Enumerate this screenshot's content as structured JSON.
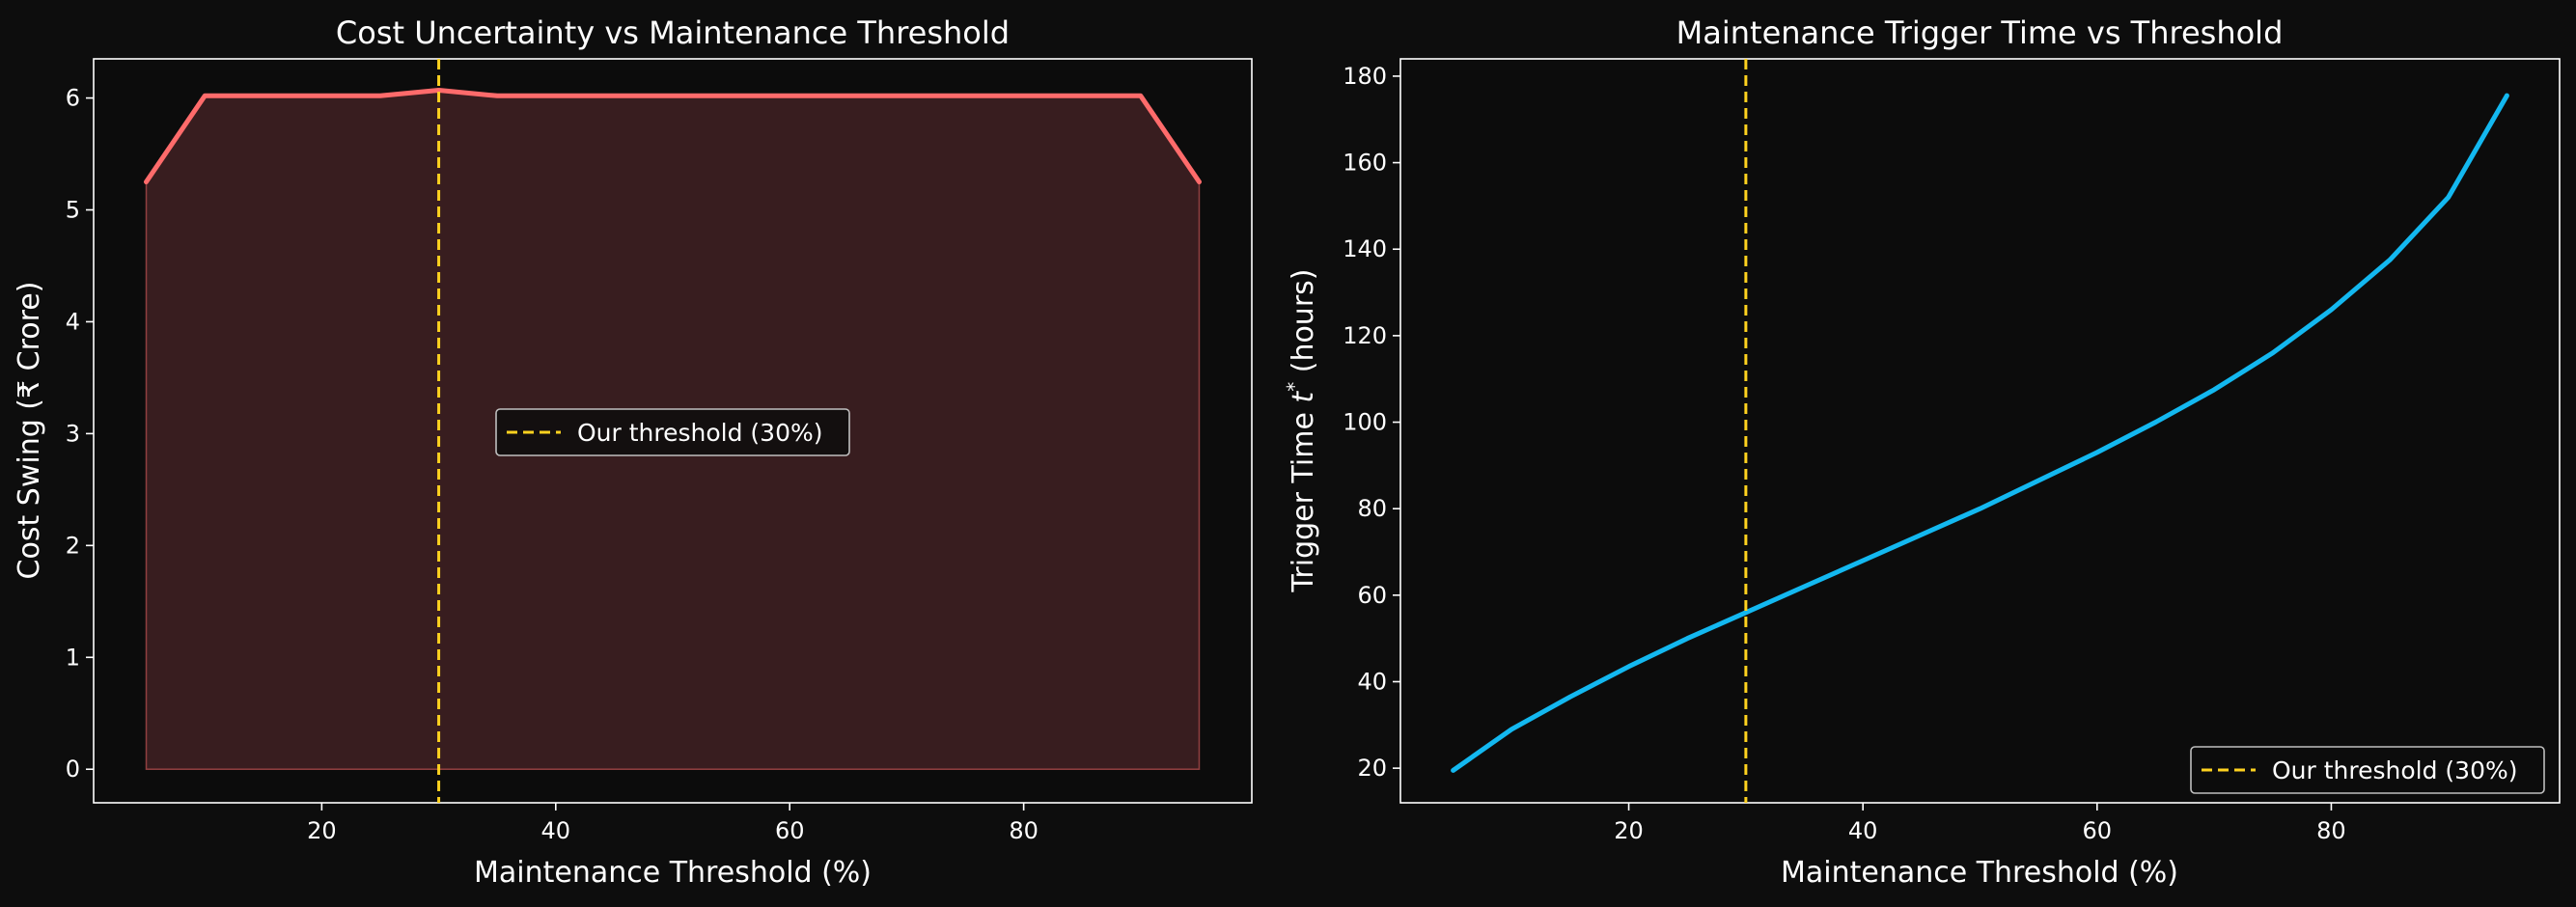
{
  "chart_data": [
    {
      "type": "area",
      "title": "Cost Uncertainty vs Maintenance Threshold",
      "xlabel": "Maintenance Threshold (%)",
      "ylabel": "Cost Swing (₹ Crore)",
      "xlim": [
        0.5,
        99.5
      ],
      "ylim": [
        -0.3,
        6.35
      ],
      "xticks": [
        20,
        40,
        60,
        80
      ],
      "yticks": [
        0,
        1,
        2,
        3,
        4,
        5,
        6
      ],
      "grid": false,
      "legend_position": "center",
      "series": [
        {
          "x": [
            5,
            10,
            15,
            20,
            25,
            30,
            35,
            40,
            45,
            50,
            55,
            60,
            65,
            70,
            75,
            80,
            85,
            90,
            95
          ],
          "values": [
            5.25,
            6.02,
            6.02,
            6.02,
            6.02,
            6.07,
            6.02,
            6.02,
            6.02,
            6.02,
            6.02,
            6.02,
            6.02,
            6.02,
            6.02,
            6.02,
            6.02,
            6.02,
            5.25
          ],
          "color": "#ff6b6b",
          "fill_color": "#3d1f21"
        }
      ],
      "vline": {
        "x": 30,
        "label": "Our threshold (30%)",
        "color": "#ffd21f"
      }
    },
    {
      "type": "line",
      "title": "Maintenance Trigger Time vs Threshold",
      "xlabel": "Maintenance Threshold (%)",
      "ylabel_main": "Trigger Time ",
      "ylabel_var": "t",
      "ylabel_sup": "*",
      "ylabel_unit": "  (hours)",
      "xlim": [
        0.5,
        99.5
      ],
      "ylim": [
        12,
        184
      ],
      "xticks": [
        20,
        40,
        60,
        80
      ],
      "yticks": [
        20,
        40,
        60,
        80,
        100,
        120,
        140,
        160,
        180
      ],
      "grid": false,
      "legend_position": "lower right",
      "series": [
        {
          "x": [
            5,
            10,
            15,
            20,
            25,
            30,
            35,
            40,
            45,
            50,
            55,
            60,
            65,
            70,
            75,
            80,
            85,
            90,
            95
          ],
          "values": [
            19.5,
            29,
            36.5,
            43.5,
            50,
            56,
            62,
            68,
            74,
            80,
            86.5,
            93,
            100,
            107.5,
            116,
            126,
            137.5,
            152,
            175.5
          ],
          "color": "#13b8f0"
        }
      ],
      "vline": {
        "x": 30,
        "label": "Our threshold (30%)",
        "color": "#ffd21f"
      }
    }
  ]
}
